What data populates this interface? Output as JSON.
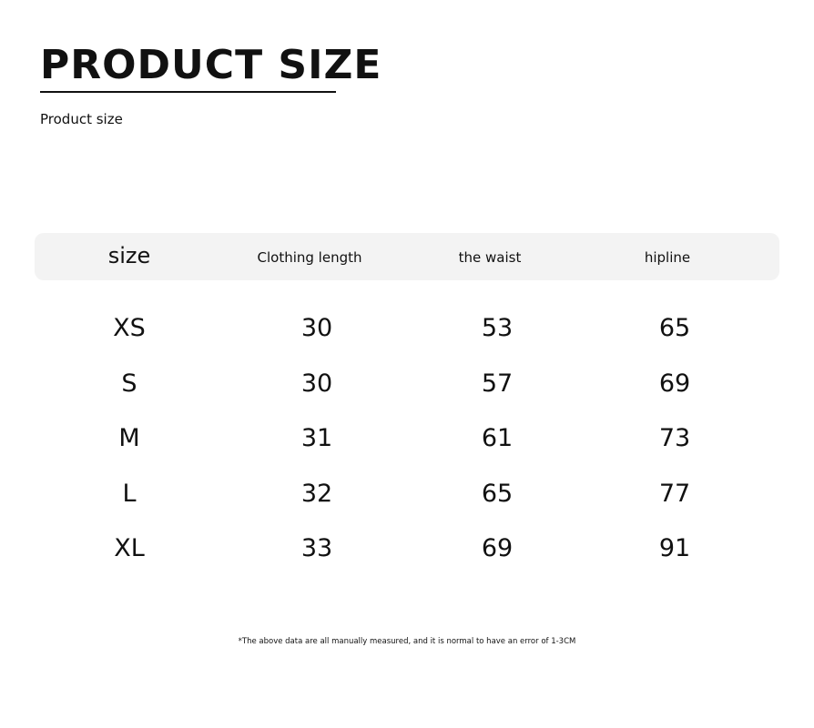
{
  "title": "PRODUCT SIZE",
  "subtitle": "Product size",
  "table": {
    "headers": [
      "size",
      "Clothing length",
      "the waist",
      "hipline"
    ],
    "rows": [
      [
        "XS",
        "30",
        "53",
        "65"
      ],
      [
        "S",
        "30",
        "57",
        "69"
      ],
      [
        "M",
        "31",
        "61",
        "73"
      ],
      [
        "L",
        "32",
        "65",
        "77"
      ],
      [
        "XL",
        "33",
        "69",
        "91"
      ]
    ]
  },
  "note": "*The above data are all manually measured, and it is normal to have an error of 1-3CM"
}
